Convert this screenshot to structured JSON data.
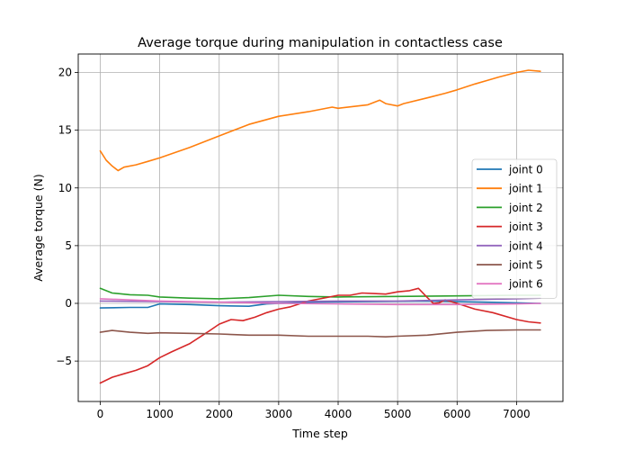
{
  "chart_data": {
    "type": "line",
    "title": "Average torque during manipulation in contactless case",
    "xlabel": "Time step",
    "ylabel": "Average torque (N)",
    "xlim": [
      -370,
      7780
    ],
    "ylim": [
      -8.5,
      21.6
    ],
    "xticks": [
      0,
      1000,
      2000,
      3000,
      4000,
      5000,
      6000,
      7000
    ],
    "yticks": [
      -5,
      0,
      5,
      10,
      15,
      20
    ],
    "grid": true,
    "legend_position": "center-right",
    "series": [
      {
        "name": "joint 0",
        "color": "#1f77b4",
        "x": [
          0,
          500,
          800,
          1000,
          1500,
          2000,
          2500,
          2800,
          3500,
          4500,
          5500,
          6500,
          7400
        ],
        "y": [
          -0.4,
          -0.35,
          -0.35,
          -0.05,
          -0.1,
          -0.2,
          -0.25,
          -0.05,
          0.1,
          0.15,
          0.2,
          0.1,
          0.0
        ]
      },
      {
        "name": "joint 1",
        "color": "#ff7f0e",
        "x": [
          0,
          100,
          200,
          300,
          400,
          600,
          800,
          1000,
          1500,
          2000,
          2500,
          3000,
          3500,
          3900,
          4000,
          4500,
          4700,
          4800,
          5000,
          5100,
          5500,
          5800,
          6000,
          6300,
          6500,
          6700,
          7000,
          7200,
          7400
        ],
        "y": [
          13.2,
          12.4,
          11.9,
          11.5,
          11.8,
          12.0,
          12.3,
          12.6,
          13.5,
          14.5,
          15.5,
          16.2,
          16.6,
          17.0,
          16.9,
          17.2,
          17.6,
          17.3,
          17.1,
          17.3,
          17.8,
          18.2,
          18.5,
          19.0,
          19.3,
          19.6,
          20.0,
          20.2,
          20.1
        ]
      },
      {
        "name": "joint 2",
        "color": "#2ca02c",
        "x": [
          0,
          200,
          500,
          800,
          1000,
          1500,
          2000,
          2500,
          3000,
          3500,
          4000,
          5000,
          6000,
          7000,
          7400
        ],
        "y": [
          1.3,
          0.9,
          0.75,
          0.7,
          0.55,
          0.45,
          0.4,
          0.5,
          0.7,
          0.6,
          0.55,
          0.6,
          0.65,
          0.7,
          0.7
        ]
      },
      {
        "name": "joint 3",
        "color": "#d62728",
        "x": [
          0,
          200,
          400,
          600,
          800,
          1000,
          1200,
          1500,
          1800,
          2000,
          2200,
          2400,
          2600,
          2800,
          3000,
          3200,
          3500,
          3800,
          4000,
          4200,
          4400,
          4600,
          4800,
          5000,
          5200,
          5350,
          5500,
          5600,
          5700,
          5800,
          6000,
          6300,
          6600,
          7000,
          7200,
          7400
        ],
        "y": [
          -6.9,
          -6.4,
          -6.1,
          -5.8,
          -5.4,
          -4.7,
          -4.2,
          -3.5,
          -2.5,
          -1.8,
          -1.4,
          -1.5,
          -1.2,
          -0.8,
          -0.5,
          -0.3,
          0.2,
          0.5,
          0.7,
          0.7,
          0.9,
          0.85,
          0.8,
          1.0,
          1.1,
          1.3,
          0.5,
          0.0,
          0.05,
          0.3,
          0.0,
          -0.5,
          -0.8,
          -1.4,
          -1.6,
          -1.7
        ]
      },
      {
        "name": "joint 4",
        "color": "#9467bd",
        "x": [
          0,
          1000,
          2000,
          3000,
          4000,
          5000,
          6000,
          7000,
          7400
        ],
        "y": [
          0.2,
          0.15,
          0.1,
          0.15,
          0.2,
          0.2,
          0.3,
          0.4,
          0.45
        ]
      },
      {
        "name": "joint 5",
        "color": "#8c564b",
        "x": [
          0,
          200,
          500,
          800,
          1000,
          1500,
          2000,
          2500,
          3000,
          3500,
          4000,
          4500,
          4800,
          5000,
          5500,
          6000,
          6500,
          7000,
          7400
        ],
        "y": [
          -2.5,
          -2.35,
          -2.5,
          -2.6,
          -2.55,
          -2.6,
          -2.65,
          -2.75,
          -2.75,
          -2.85,
          -2.85,
          -2.85,
          -2.9,
          -2.85,
          -2.75,
          -2.5,
          -2.35,
          -2.3,
          -2.3
        ]
      },
      {
        "name": "joint 6",
        "color": "#e377c2",
        "x": [
          0,
          1000,
          2000,
          3000,
          4000,
          5000,
          6000,
          7000,
          7400
        ],
        "y": [
          0.4,
          0.2,
          0.1,
          0.0,
          -0.05,
          -0.1,
          -0.1,
          -0.05,
          0.0
        ]
      }
    ]
  }
}
